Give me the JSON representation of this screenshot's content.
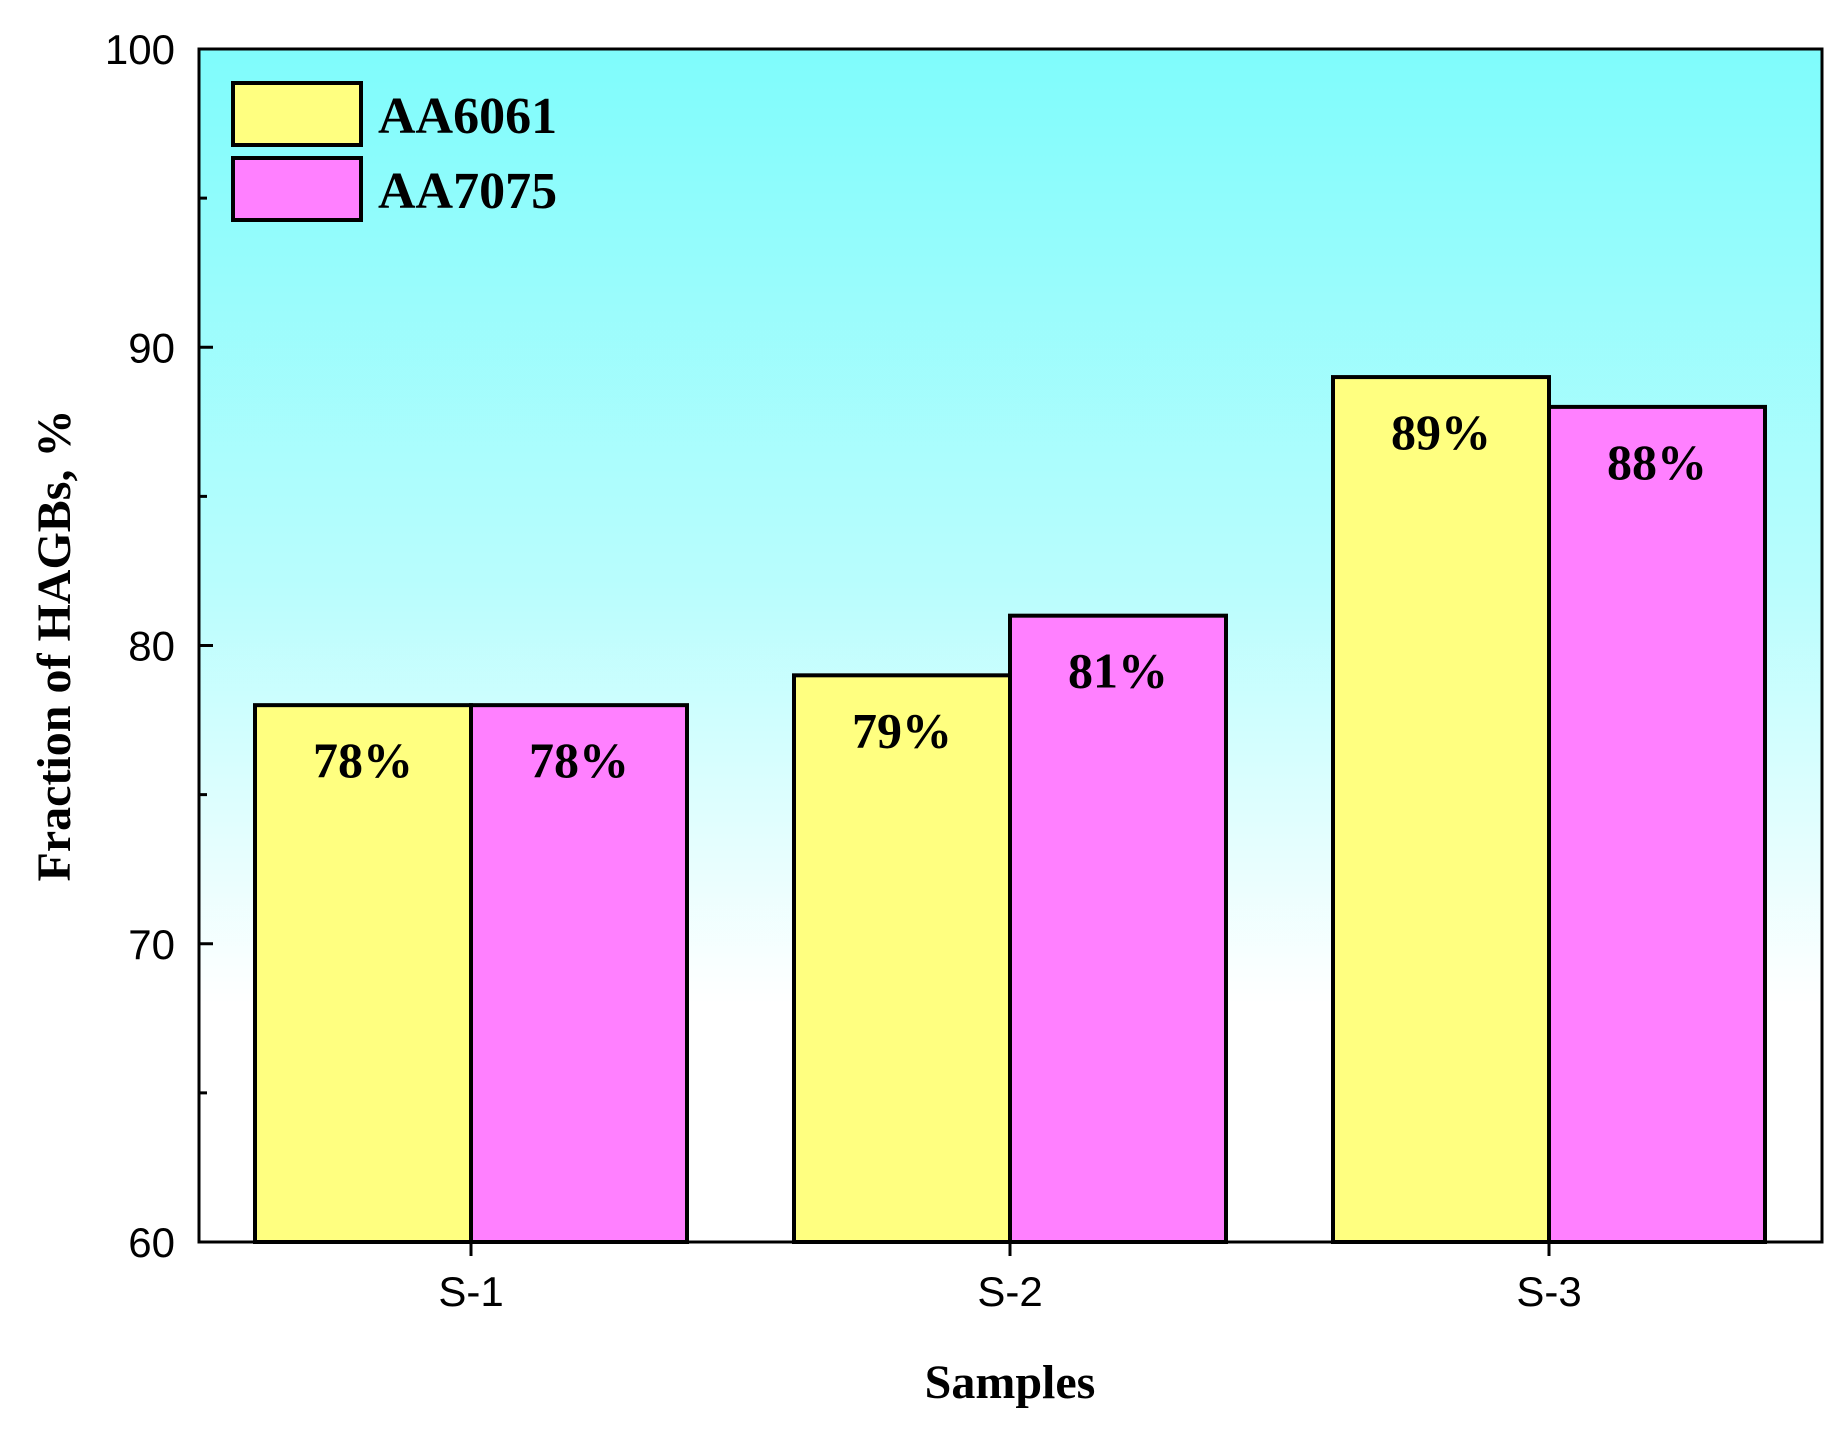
{
  "chart_data": {
    "type": "bar",
    "title": "",
    "xlabel": "Samples",
    "ylabel": "Fraction of HAGBs, %",
    "categories": [
      "S-1",
      "S-2",
      "S-3"
    ],
    "ylim": [
      60,
      100
    ],
    "yticks": [
      60,
      70,
      80,
      90,
      100
    ],
    "grid": false,
    "legend_position": "top-left",
    "series": [
      {
        "name": "AA6061",
        "color": "#ffff80",
        "values": [
          78,
          79,
          89
        ],
        "labels": [
          "78%",
          "79%",
          "89%"
        ]
      },
      {
        "name": "AA7075",
        "color": "#ff80ff",
        "values": [
          78,
          81,
          88
        ],
        "labels": [
          "78%",
          "81%",
          "88%"
        ]
      }
    ],
    "background_gradient": [
      "#7ffcfc",
      "#ffffff"
    ]
  }
}
